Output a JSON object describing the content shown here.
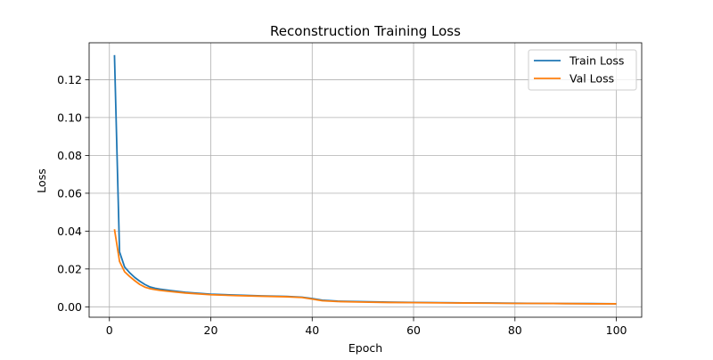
{
  "chart_data": {
    "type": "line",
    "title": "Reconstruction Training Loss",
    "xlabel": "Epoch",
    "ylabel": "Loss",
    "xlim": [
      -4.0,
      105.0
    ],
    "ylim": [
      -0.0055,
      0.1395
    ],
    "xticks": [
      0,
      20,
      40,
      60,
      80,
      100
    ],
    "xtick_labels": [
      "0",
      "20",
      "40",
      "60",
      "80",
      "100"
    ],
    "yticks": [
      0.0,
      0.02,
      0.04,
      0.06,
      0.08,
      0.1,
      0.12
    ],
    "ytick_labels": [
      "0.00",
      "0.02",
      "0.04",
      "0.06",
      "0.08",
      "0.10",
      "0.12"
    ],
    "grid": true,
    "legend_position": "top-right",
    "series": [
      {
        "name": "Train Loss",
        "color": "#1f77b4",
        "x": [
          1,
          2,
          3,
          4,
          5,
          6,
          7,
          8,
          9,
          10,
          12,
          15,
          20,
          25,
          30,
          35,
          38,
          40,
          42,
          45,
          50,
          55,
          60,
          65,
          70,
          75,
          80,
          85,
          90,
          95,
          100
        ],
        "y": [
          0.133,
          0.029,
          0.021,
          0.018,
          0.0155,
          0.0135,
          0.0118,
          0.0105,
          0.0098,
          0.0093,
          0.0086,
          0.0077,
          0.0067,
          0.0062,
          0.0058,
          0.0055,
          0.0051,
          0.0044,
          0.0035,
          0.003,
          0.0027,
          0.0025,
          0.0023,
          0.0022,
          0.0021,
          0.002,
          0.0019,
          0.0018,
          0.0017,
          0.0017,
          0.0016
        ]
      },
      {
        "name": "Val Loss",
        "color": "#ff7f0e",
        "x": [
          1,
          2,
          3,
          4,
          5,
          6,
          7,
          8,
          9,
          10,
          12,
          15,
          20,
          25,
          30,
          35,
          38,
          40,
          42,
          45,
          50,
          55,
          60,
          65,
          70,
          75,
          80,
          85,
          90,
          95,
          100
        ],
        "y": [
          0.041,
          0.024,
          0.0185,
          0.016,
          0.0138,
          0.0118,
          0.0104,
          0.0096,
          0.0091,
          0.0087,
          0.0081,
          0.0073,
          0.0064,
          0.0059,
          0.0056,
          0.0053,
          0.0049,
          0.0041,
          0.0032,
          0.0028,
          0.0025,
          0.0023,
          0.0022,
          0.0021,
          0.002,
          0.0019,
          0.0018,
          0.0018,
          0.0017,
          0.0016,
          0.0016
        ]
      }
    ]
  }
}
